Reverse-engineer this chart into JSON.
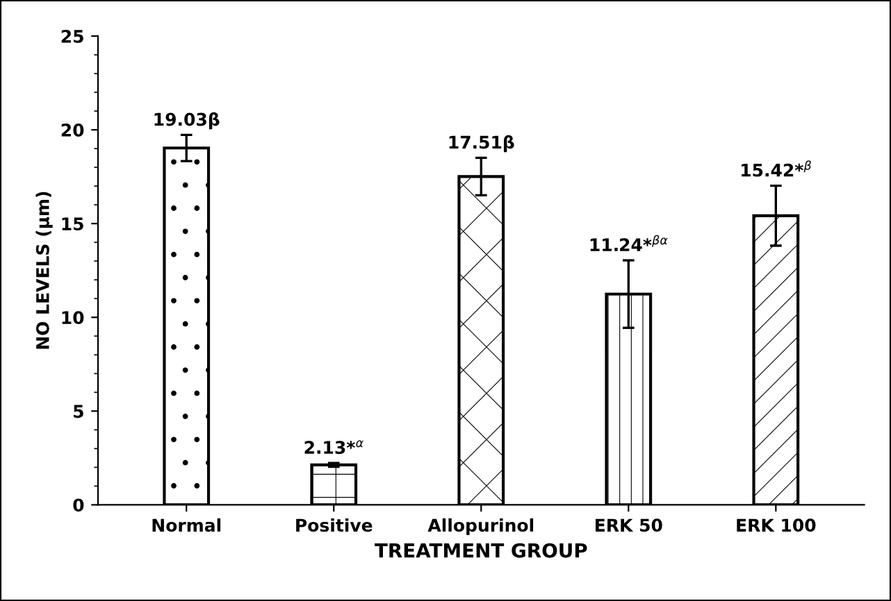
{
  "chart_data": {
    "type": "bar",
    "xlabel": "TREATMENT GROUP",
    "ylabel": "NO LEVELS (µm)",
    "categories": [
      "Normal",
      "Positive",
      "Allopurinol",
      "ERK 50",
      "ERK 100"
    ],
    "values": [
      19.03,
      2.13,
      17.51,
      11.24,
      15.42
    ],
    "errors": [
      0.7,
      0.1,
      1.0,
      1.8,
      1.6
    ],
    "value_labels": [
      "19.03β",
      "2.13*$^{α}$",
      "17.51β",
      "11.24*$^{βα}$",
      "15.42*$^{β}$"
    ],
    "color": "#000000",
    "ylim": [
      0,
      25
    ],
    "yticks": [
      0,
      5,
      10,
      15,
      20,
      25
    ],
    "grid": false
  }
}
